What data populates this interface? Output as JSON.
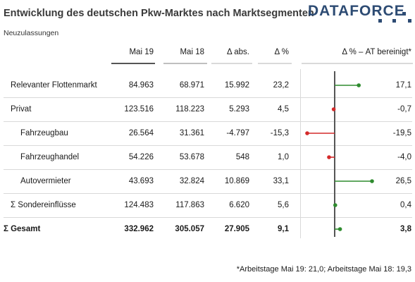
{
  "title": "Entwicklung des deutschen Pkw-Marktes nach Marktsegmenten",
  "subtitle": "Neuzulassungen",
  "logo": {
    "text": "DATAFORCE"
  },
  "footnote": "*Arbeitstage Mai 19: 21,0; Arbeitstage Mai 18: 19,3",
  "colors": {
    "positive": "#2e8b2e",
    "negative": "#d42a2a",
    "header_mai19": "#555555",
    "header_mai18": "#bfbfbf",
    "header_other": "#d9d9d9"
  },
  "chart_data": {
    "type": "table",
    "columns": [
      "Mai 19",
      "Mai 18",
      "Δ abs.",
      "Δ %",
      "Δ % – AT bereinigt*"
    ],
    "rows": [
      {
        "label": "Relevanter Flottenmarkt",
        "mai19": "84.963",
        "mai18": "68.971",
        "abs": "15.992",
        "pct": "23,2",
        "at": "17,1",
        "at_value": 17.1,
        "indent": false,
        "bold": false
      },
      {
        "label": "Privat",
        "mai19": "123.516",
        "mai18": "118.223",
        "abs": "5.293",
        "pct": "4,5",
        "at": "-0,7",
        "at_value": -0.7,
        "indent": false,
        "bold": false
      },
      {
        "label": "Fahrzeugbau",
        "mai19": "26.564",
        "mai18": "31.361",
        "abs": "-4.797",
        "pct": "-15,3",
        "at": "-19,5",
        "at_value": -19.5,
        "indent": true,
        "bold": false
      },
      {
        "label": "Fahrzeughandel",
        "mai19": "54.226",
        "mai18": "53.678",
        "abs": "548",
        "pct": "1,0",
        "at": "-4,0",
        "at_value": -4.0,
        "indent": true,
        "bold": false
      },
      {
        "label": "Autovermieter",
        "mai19": "43.693",
        "mai18": "32.824",
        "abs": "10.869",
        "pct": "33,1",
        "at": "26,5",
        "at_value": 26.5,
        "indent": true,
        "bold": false
      },
      {
        "label": "Σ Sondereinflüsse",
        "mai19": "124.483",
        "mai18": "117.863",
        "abs": "6.620",
        "pct": "5,6",
        "at": "0,4",
        "at_value": 0.4,
        "indent": false,
        "bold": false
      },
      {
        "label": "Σ Gesamt",
        "mai19": "332.962",
        "mai18": "305.057",
        "abs": "27.905",
        "pct": "9,1",
        "at": "3,8",
        "at_value": 3.8,
        "indent": false,
        "bold": true
      }
    ]
  }
}
